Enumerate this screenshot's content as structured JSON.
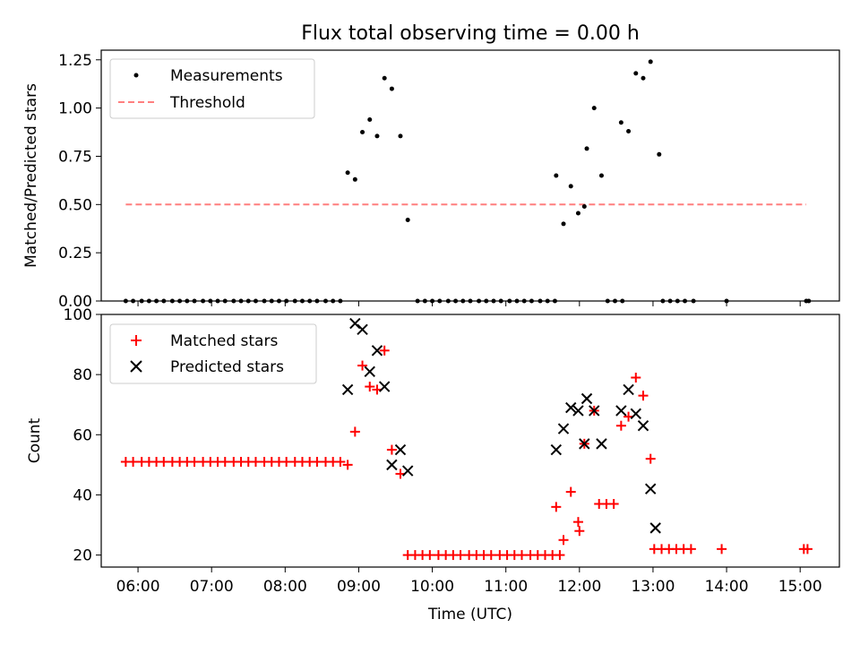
{
  "title": "Flux total observing time = 0.00 h",
  "chart_data": [
    {
      "type": "scatter",
      "ylabel": "Matched/Predicted stars",
      "xlim": [
        "05:30",
        "15:32"
      ],
      "ylim": [
        0,
        1.3
      ],
      "yticks": [
        "0.00",
        "0.25",
        "0.50",
        "0.75",
        "1.00",
        "1.25"
      ],
      "legend": {
        "placement": "top-left",
        "entries": [
          "Measurements",
          "Threshold"
        ]
      },
      "colors": {
        "measurements": "#000000",
        "threshold": "#ff7f7f"
      },
      "threshold": {
        "name": "Threshold",
        "y": 0.5,
        "x_range": [
          "05:50",
          "15:05"
        ]
      },
      "series": [
        {
          "name": "Measurements",
          "marker": "dot",
          "points": [
            [
              "05:50",
              0
            ],
            [
              "05:56",
              0
            ],
            [
              "06:03",
              0
            ],
            [
              "06:09",
              0
            ],
            [
              "06:15",
              0
            ],
            [
              "06:21",
              0
            ],
            [
              "06:28",
              0
            ],
            [
              "06:34",
              0
            ],
            [
              "06:40",
              0
            ],
            [
              "06:46",
              0
            ],
            [
              "06:53",
              0
            ],
            [
              "06:59",
              0
            ],
            [
              "07:05",
              0
            ],
            [
              "07:11",
              0
            ],
            [
              "07:18",
              0
            ],
            [
              "07:24",
              0
            ],
            [
              "07:30",
              0
            ],
            [
              "07:36",
              0
            ],
            [
              "07:43",
              0
            ],
            [
              "07:49",
              0
            ],
            [
              "07:55",
              0
            ],
            [
              "08:01",
              0
            ],
            [
              "08:08",
              0
            ],
            [
              "08:14",
              0
            ],
            [
              "08:20",
              0
            ],
            [
              "08:26",
              0
            ],
            [
              "08:33",
              0
            ],
            [
              "08:39",
              0
            ],
            [
              "08:45",
              0
            ],
            [
              "08:51",
              0.665
            ],
            [
              "08:57",
              0.63
            ],
            [
              "09:03",
              0.875
            ],
            [
              "09:09",
              0.94
            ],
            [
              "09:15",
              0.855
            ],
            [
              "09:21",
              1.155
            ],
            [
              "09:27",
              1.1
            ],
            [
              "09:34",
              0.855
            ],
            [
              "09:40",
              0.42
            ],
            [
              "09:48",
              0
            ],
            [
              "09:54",
              0
            ],
            [
              "10:00",
              0
            ],
            [
              "10:06",
              0
            ],
            [
              "10:13",
              0
            ],
            [
              "10:19",
              0
            ],
            [
              "10:25",
              0
            ],
            [
              "10:31",
              0
            ],
            [
              "10:38",
              0
            ],
            [
              "10:44",
              0
            ],
            [
              "10:50",
              0
            ],
            [
              "10:56",
              0
            ],
            [
              "11:03",
              0
            ],
            [
              "11:09",
              0
            ],
            [
              "11:15",
              0
            ],
            [
              "11:21",
              0
            ],
            [
              "11:28",
              0
            ],
            [
              "11:34",
              0
            ],
            [
              "11:40",
              0
            ],
            [
              "11:41",
              0.65
            ],
            [
              "11:47",
              0.4
            ],
            [
              "11:53",
              0.595
            ],
            [
              "11:59",
              0.455
            ],
            [
              "12:04",
              0.49
            ],
            [
              "12:06",
              0.79
            ],
            [
              "12:12",
              1.0
            ],
            [
              "12:18",
              0.65
            ],
            [
              "12:23",
              0
            ],
            [
              "12:29",
              0
            ],
            [
              "12:35",
              0
            ],
            [
              "12:34",
              0.925
            ],
            [
              "12:40",
              0.88
            ],
            [
              "12:46",
              1.18
            ],
            [
              "12:52",
              1.155
            ],
            [
              "12:58",
              1.24
            ],
            [
              "13:05",
              0.76
            ],
            [
              "13:08",
              0
            ],
            [
              "13:14",
              0
            ],
            [
              "13:20",
              0
            ],
            [
              "13:26",
              0
            ],
            [
              "13:33",
              0
            ],
            [
              "14:00",
              0
            ],
            [
              "15:05",
              0
            ],
            [
              "15:07",
              0
            ]
          ]
        }
      ]
    },
    {
      "type": "scatter",
      "xlabel": "Time (UTC)",
      "ylabel": "Count",
      "xlim": [
        "05:30",
        "15:32"
      ],
      "ylim": [
        16,
        100
      ],
      "xticks": [
        "06:00",
        "07:00",
        "08:00",
        "09:00",
        "10:00",
        "11:00",
        "12:00",
        "13:00",
        "14:00",
        "15:00"
      ],
      "yticks": [
        "20",
        "40",
        "60",
        "80",
        "100"
      ],
      "legend": {
        "placement": "top-left",
        "entries": [
          "Matched stars",
          "Predicted stars"
        ]
      },
      "colors": {
        "matched": "#ff0000",
        "predicted": "#000000"
      },
      "series": [
        {
          "name": "Matched stars",
          "marker": "plus",
          "points": [
            [
              "05:50",
              51
            ],
            [
              "05:56",
              51
            ],
            [
              "06:03",
              51
            ],
            [
              "06:09",
              51
            ],
            [
              "06:15",
              51
            ],
            [
              "06:21",
              51
            ],
            [
              "06:28",
              51
            ],
            [
              "06:34",
              51
            ],
            [
              "06:40",
              51
            ],
            [
              "06:46",
              51
            ],
            [
              "06:53",
              51
            ],
            [
              "06:59",
              51
            ],
            [
              "07:05",
              51
            ],
            [
              "07:11",
              51
            ],
            [
              "07:18",
              51
            ],
            [
              "07:24",
              51
            ],
            [
              "07:30",
              51
            ],
            [
              "07:36",
              51
            ],
            [
              "07:43",
              51
            ],
            [
              "07:49",
              51
            ],
            [
              "07:55",
              51
            ],
            [
              "08:01",
              51
            ],
            [
              "08:08",
              51
            ],
            [
              "08:14",
              51
            ],
            [
              "08:20",
              51
            ],
            [
              "08:26",
              51
            ],
            [
              "08:33",
              51
            ],
            [
              "08:39",
              51
            ],
            [
              "08:45",
              51
            ],
            [
              "08:51",
              50
            ],
            [
              "08:57",
              61
            ],
            [
              "09:03",
              83
            ],
            [
              "09:09",
              76
            ],
            [
              "09:15",
              75
            ],
            [
              "09:21",
              88
            ],
            [
              "09:27",
              55
            ],
            [
              "09:34",
              47
            ],
            [
              "09:40",
              20
            ],
            [
              "09:46",
              20
            ],
            [
              "09:52",
              20
            ],
            [
              "09:58",
              20
            ],
            [
              "10:05",
              20
            ],
            [
              "10:11",
              20
            ],
            [
              "10:17",
              20
            ],
            [
              "10:23",
              20
            ],
            [
              "10:30",
              20
            ],
            [
              "10:36",
              20
            ],
            [
              "10:42",
              20
            ],
            [
              "10:48",
              20
            ],
            [
              "10:55",
              20
            ],
            [
              "11:01",
              20
            ],
            [
              "11:07",
              20
            ],
            [
              "11:13",
              20
            ],
            [
              "11:20",
              20
            ],
            [
              "11:26",
              20
            ],
            [
              "11:32",
              20
            ],
            [
              "11:38",
              20
            ],
            [
              "11:44",
              20
            ],
            [
              "11:41",
              36
            ],
            [
              "11:47",
              25
            ],
            [
              "11:53",
              41
            ],
            [
              "11:59",
              31
            ],
            [
              "12:00",
              28
            ],
            [
              "12:04",
              57
            ],
            [
              "12:12",
              68
            ],
            [
              "12:16",
              37
            ],
            [
              "12:22",
              37
            ],
            [
              "12:28",
              37
            ],
            [
              "12:34",
              63
            ],
            [
              "12:40",
              66
            ],
            [
              "12:46",
              79
            ],
            [
              "12:52",
              73
            ],
            [
              "12:58",
              52
            ],
            [
              "13:01",
              22
            ],
            [
              "13:07",
              22
            ],
            [
              "13:13",
              22
            ],
            [
              "13:19",
              22
            ],
            [
              "13:25",
              22
            ],
            [
              "13:31",
              22
            ],
            [
              "13:56",
              22
            ],
            [
              "15:03",
              22
            ],
            [
              "15:06",
              22
            ]
          ]
        },
        {
          "name": "Predicted stars",
          "marker": "x",
          "points": [
            [
              "08:51",
              75
            ],
            [
              "08:57",
              97
            ],
            [
              "09:03",
              95
            ],
            [
              "09:09",
              81
            ],
            [
              "09:15",
              88
            ],
            [
              "09:21",
              76
            ],
            [
              "09:27",
              50
            ],
            [
              "09:34",
              55
            ],
            [
              "09:40",
              48
            ],
            [
              "11:41",
              55
            ],
            [
              "11:47",
              62
            ],
            [
              "11:53",
              69
            ],
            [
              "11:59",
              68
            ],
            [
              "12:04",
              57
            ],
            [
              "12:06",
              72
            ],
            [
              "12:12",
              68
            ],
            [
              "12:18",
              57
            ],
            [
              "12:34",
              68
            ],
            [
              "12:40",
              75
            ],
            [
              "12:46",
              67
            ],
            [
              "12:52",
              63
            ],
            [
              "12:58",
              42
            ],
            [
              "13:02",
              29
            ]
          ]
        }
      ]
    }
  ]
}
